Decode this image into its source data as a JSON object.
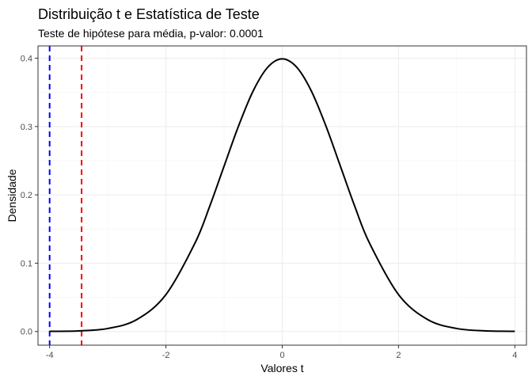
{
  "chart_data": {
    "type": "line",
    "title": "Distribuição t e Estatística de Teste",
    "subtitle": "Teste de hipótese para média, p-valor: 0.0001",
    "xlabel": "Valores t",
    "ylabel": "Densidade",
    "xlim": [
      -4.2,
      4.2
    ],
    "ylim": [
      -0.02,
      0.418
    ],
    "x_ticks": [
      -4,
      -2,
      0,
      2,
      4
    ],
    "x_tick_labels": [
      "-4",
      "-2",
      "0",
      "2",
      "4"
    ],
    "y_ticks": [
      0.0,
      0.1,
      0.2,
      0.3,
      0.4
    ],
    "y_tick_labels": [
      "0.0",
      "0.1",
      "0.2",
      "0.3",
      "0.4"
    ],
    "grid": true,
    "series": [
      {
        "color": "#000000",
        "x": [
          -4.0,
          -3.5,
          -3.0,
          -2.5,
          -2.0,
          -1.5,
          -1.25,
          -1.0,
          -0.75,
          -0.5,
          -0.25,
          0.0,
          0.25,
          0.5,
          0.75,
          1.0,
          1.25,
          1.5,
          2.0,
          2.5,
          3.0,
          3.5,
          4.0
        ],
        "y": [
          0.0003,
          0.0009,
          0.0044,
          0.0175,
          0.054,
          0.1295,
          0.1826,
          0.242,
          0.3011,
          0.3521,
          0.3867,
          0.399,
          0.3867,
          0.3521,
          0.3011,
          0.242,
          0.1826,
          0.1295,
          0.054,
          0.0175,
          0.0044,
          0.0009,
          0.0003
        ]
      }
    ],
    "shaded_region": {
      "x_from": -4.0,
      "x_to": -3.45,
      "color": "#d73027"
    },
    "vlines": [
      {
        "x": -4.0,
        "color": "#0000ff",
        "style": "dashed"
      },
      {
        "x": -3.45,
        "color": "#ff0000",
        "style": "dashed"
      }
    ]
  }
}
